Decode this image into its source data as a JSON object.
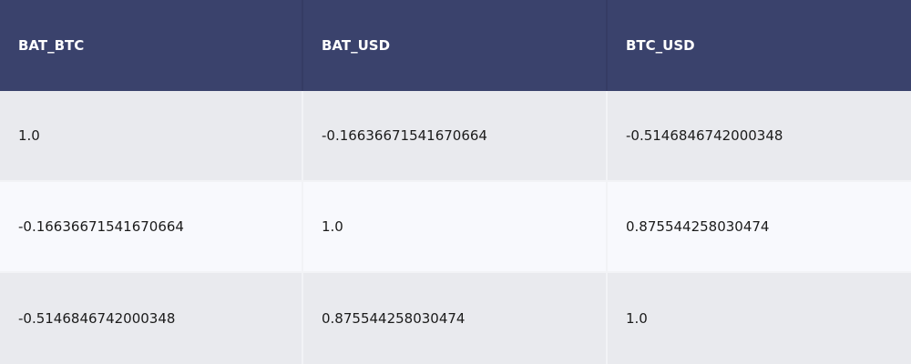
{
  "table": {
    "columns": [
      "BAT_BTC",
      "BAT_USD",
      "BTC_USD"
    ],
    "rows": [
      [
        "1.0",
        "-0.16636671541670664",
        "-0.5146846742000348"
      ],
      [
        "-0.16636671541670664",
        "1.0",
        "0.875544258030474"
      ],
      [
        "-0.5146846742000348",
        "0.875544258030474",
        "1.0"
      ]
    ]
  },
  "colors": {
    "header_bg": "#3a426c",
    "header_text": "#ffffff",
    "row_odd_bg": "#e9eaee",
    "row_even_bg": "#f8f9fd"
  }
}
